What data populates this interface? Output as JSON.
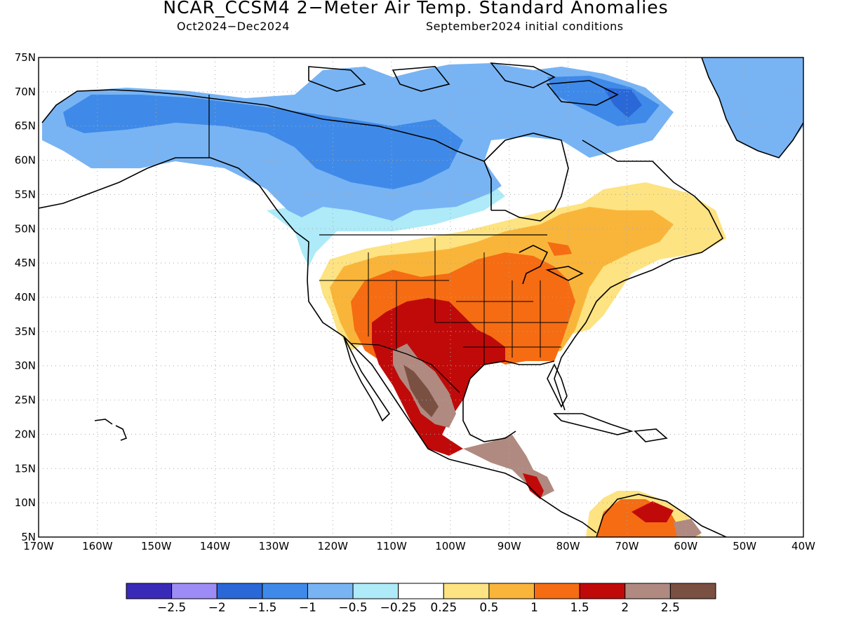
{
  "title": "NCAR_CCSM4 2−Meter Air Temp. Standard Anomalies",
  "subtitle_left": "Oct2024−Dec2024",
  "subtitle_right": "September2024 initial conditions",
  "lat_labels": [
    "75N",
    "70N",
    "65N",
    "60N",
    "55N",
    "50N",
    "45N",
    "40N",
    "35N",
    "30N",
    "25N",
    "20N",
    "15N",
    "10N",
    "5N"
  ],
  "lon_labels": [
    "170W",
    "160W",
    "150W",
    "140W",
    "130W",
    "120W",
    "110W",
    "100W",
    "90W",
    "80W",
    "70W",
    "60W",
    "50W",
    "40W"
  ],
  "legend": {
    "colors": [
      "#3a2ab8",
      "#9d8cf5",
      "#2a68d8",
      "#3f8ae8",
      "#78b4f4",
      "#aeeaf8",
      "#ffffff",
      "#fde381",
      "#f9b53a",
      "#f56c13",
      "#c00a0a",
      "#b08a80",
      "#7a5042"
    ],
    "labels": [
      "−2.5",
      "−2",
      "−1.5",
      "−1",
      "−0.5",
      "−0.25",
      "0.25",
      "0.5",
      "1",
      "1.5",
      "2",
      "2.5"
    ]
  },
  "colors": {
    "ocean": "#ffffff",
    "grid": "#a8a8a8",
    "coast": "#000000"
  }
}
